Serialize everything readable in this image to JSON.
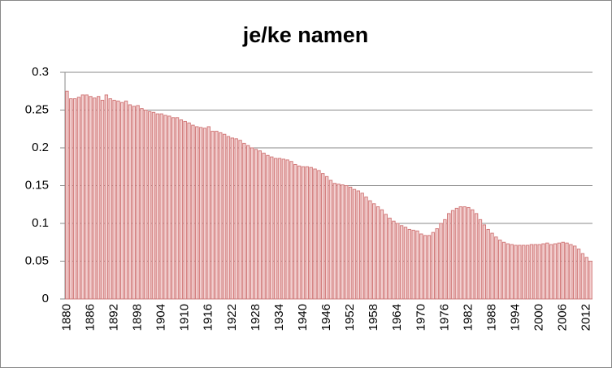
{
  "chart_data": {
    "type": "bar",
    "title": "je/ke namen",
    "categories": [
      "1880",
      null,
      null,
      null,
      null,
      null,
      "1886",
      null,
      null,
      null,
      null,
      null,
      "1892",
      null,
      null,
      null,
      null,
      null,
      "1898",
      null,
      null,
      null,
      null,
      null,
      "1904",
      null,
      null,
      null,
      null,
      null,
      "1910",
      null,
      null,
      null,
      null,
      null,
      "1916",
      null,
      null,
      null,
      null,
      null,
      "1922",
      null,
      null,
      null,
      null,
      null,
      "1928",
      null,
      null,
      null,
      null,
      null,
      "1934",
      null,
      null,
      null,
      null,
      null,
      "1940",
      null,
      null,
      null,
      null,
      null,
      "1946",
      null,
      null,
      null,
      null,
      null,
      "1952",
      null,
      null,
      null,
      null,
      null,
      "1958",
      null,
      null,
      null,
      null,
      null,
      "1964",
      null,
      null,
      null,
      null,
      null,
      "1970",
      null,
      null,
      null,
      null,
      null,
      "1976",
      null,
      null,
      null,
      null,
      null,
      "1982",
      null,
      null,
      null,
      null,
      null,
      "1988",
      null,
      null,
      null,
      null,
      null,
      "1994",
      null,
      null,
      null,
      null,
      null,
      "2000",
      null,
      null,
      null,
      null,
      null,
      "2006",
      null,
      null,
      null,
      null,
      null,
      "2012",
      null
    ],
    "values": [
      0.275,
      0.265,
      0.265,
      0.267,
      0.27,
      0.27,
      0.268,
      0.266,
      0.268,
      0.263,
      0.27,
      0.265,
      0.263,
      0.262,
      0.26,
      0.262,
      0.257,
      0.255,
      0.256,
      0.252,
      0.25,
      0.248,
      0.247,
      0.245,
      0.245,
      0.243,
      0.242,
      0.24,
      0.24,
      0.237,
      0.235,
      0.233,
      0.23,
      0.228,
      0.227,
      0.226,
      0.228,
      0.222,
      0.222,
      0.22,
      0.218,
      0.215,
      0.213,
      0.212,
      0.21,
      0.206,
      0.203,
      0.2,
      0.198,
      0.196,
      0.193,
      0.19,
      0.188,
      0.186,
      0.186,
      0.185,
      0.184,
      0.182,
      0.178,
      0.176,
      0.175,
      0.175,
      0.174,
      0.172,
      0.17,
      0.166,
      0.162,
      0.157,
      0.153,
      0.152,
      0.151,
      0.15,
      0.148,
      0.145,
      0.143,
      0.14,
      0.135,
      0.13,
      0.126,
      0.122,
      0.118,
      0.112,
      0.107,
      0.103,
      0.1,
      0.097,
      0.095,
      0.092,
      0.091,
      0.09,
      0.086,
      0.084,
      0.084,
      0.088,
      0.093,
      0.1,
      0.105,
      0.113,
      0.117,
      0.12,
      0.122,
      0.122,
      0.121,
      0.118,
      0.113,
      0.105,
      0.098,
      0.092,
      0.087,
      0.082,
      0.078,
      0.075,
      0.073,
      0.072,
      0.071,
      0.071,
      0.071,
      0.071,
      0.072,
      0.072,
      0.072,
      0.073,
      0.074,
      0.072,
      0.073,
      0.074,
      0.075,
      0.074,
      0.072,
      0.07,
      0.066,
      0.06,
      0.055,
      0.05
    ],
    "color": "#f2d0d0",
    "edge_color": "#d27a7a",
    "ylim": [
      0,
      0.3
    ],
    "yticks": [
      0,
      0.05,
      0.1,
      0.15,
      0.2,
      0.25,
      0.3
    ],
    "grid": true
  }
}
